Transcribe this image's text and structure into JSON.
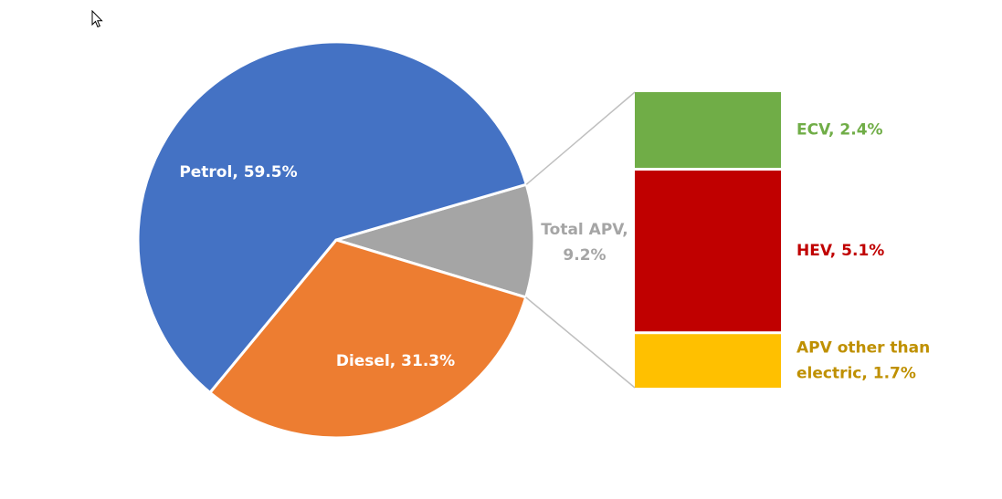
{
  "chart_data": {
    "type": "pie",
    "title": "",
    "pie": {
      "slices": [
        {
          "label": "Petrol",
          "value": 59.5,
          "display": "Petrol, 59.5%",
          "color": "#4472C4",
          "label_color": "#FFFFFF"
        },
        {
          "label": "Diesel",
          "value": 31.3,
          "display": "Diesel, 31.3%",
          "color": "#ED7D31",
          "label_color": "#FFFFFF"
        },
        {
          "label": "Total APV",
          "value": 9.2,
          "display_lines": [
            "Total APV,",
            "9.2%"
          ],
          "color": "#A5A5A5",
          "label_color": "#A5A5A5"
        }
      ]
    },
    "breakdown": {
      "parent": "Total APV",
      "segments": [
        {
          "label": "ECV",
          "value": 2.4,
          "display_lines": [
            "ECV, 2.4%"
          ],
          "color": "#70AD47",
          "label_color": "#70AD47"
        },
        {
          "label": "HEV",
          "value": 5.1,
          "display_lines": [
            "HEV, 5.1%"
          ],
          "color": "#C00000",
          "label_color": "#C00000"
        },
        {
          "label": "APV other than electric",
          "value": 1.7,
          "display_lines": [
            "APV other than",
            "electric, 1.7%"
          ],
          "color": "#FFC000",
          "label_color": "#BF9000"
        }
      ]
    },
    "connector_color": "#BFBFBF"
  }
}
